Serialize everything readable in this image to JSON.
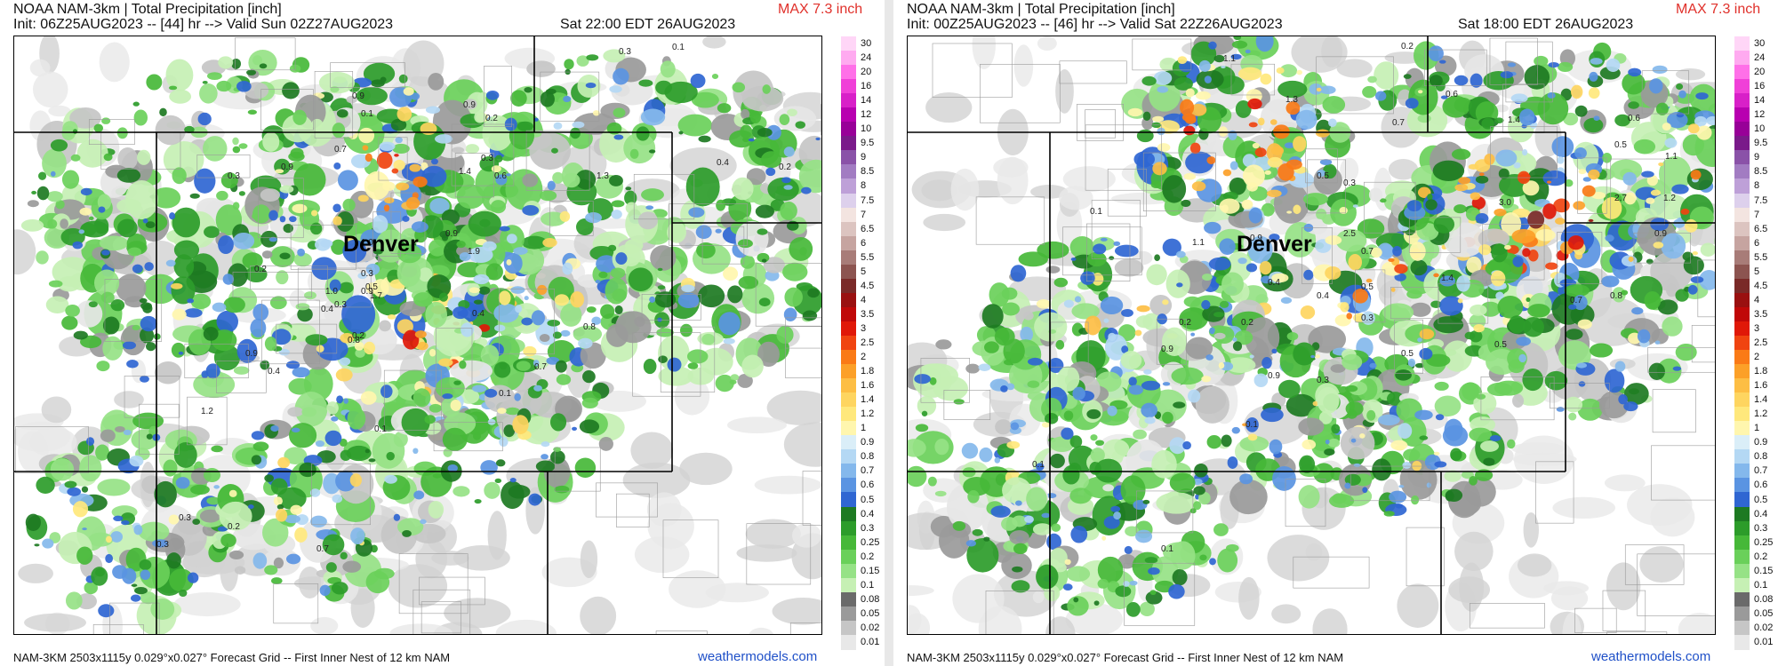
{
  "panels": [
    {
      "title": "NOAA NAM-3km | Total Precipitation [inch]",
      "max": "MAX 7.3 inch",
      "init": "Init: 06Z25AUG2023 -- [44] hr --> Valid Sun 02Z27AUG2023",
      "valid_local": "Sat 22:00 EDT 26AUG2023",
      "city": "Denver",
      "footer": "NAM-3KM 2503x1115y 0.029°x0.027° Forecast Grid -- First Inner Nest of 12 km NAM",
      "site": "weathermodels.com",
      "value_labels": [
        "0.9",
        "0.9",
        "0.3",
        "0.1",
        "0.7",
        "0.2",
        "0.3",
        "0.1",
        "1.4",
        "0.6",
        "0.4",
        "0.2",
        "0.9",
        "0.3",
        "1.3",
        "0.9",
        "1.9",
        "1.0",
        "0.5",
        "0.2",
        "1.0",
        "0.3",
        "0.3",
        "0.4",
        "0.9",
        "1.7",
        "0.4",
        "0.8",
        "0.8",
        "0.9",
        "0.2",
        "0.7",
        "0.4",
        "0.1",
        "1.2",
        "0.1",
        "0.3",
        "0.2",
        "0.3",
        "0.7"
      ]
    },
    {
      "title": "NOAA NAM-3km | Total Precipitation [inch]",
      "max": "MAX 7.3 inch",
      "init": "Init: 00Z25AUG2023 -- [46] hr --> Valid Sat 22Z26AUG2023",
      "valid_local": "Sat 18:00 EDT 26AUG2023",
      "city": "Denver",
      "footer": "NAM-3KM 2503x1115y 0.029°x0.027° Forecast Grid -- First Inner Nest of 12 km NAM",
      "site": "weathermodels.com",
      "value_labels": [
        "1.1",
        "0.2",
        "0.6",
        "1.3",
        "0.7",
        "1.4",
        "0.6",
        "0.5",
        "1.1",
        "0.5",
        "0.3",
        "0.1",
        "0.9",
        "1.1",
        "2.5",
        "2.7",
        "3.0",
        "0.9",
        "1.2",
        "0.7",
        "0.4",
        "0.5",
        "1.4",
        "0.7",
        "0.8",
        "0.2",
        "0.4",
        "0.2",
        "0.3",
        "0.9",
        "0.5",
        "0.9",
        "0.3",
        "0.5",
        "0.1",
        "0.1",
        "0.1"
      ]
    }
  ],
  "legend": {
    "labels": [
      "30",
      "24",
      "20",
      "16",
      "14",
      "12",
      "10",
      "9.5",
      "9",
      "8.5",
      "8",
      "7.5",
      "7",
      "6.5",
      "6",
      "5.5",
      "5",
      "4.5",
      "4",
      "3.5",
      "3",
      "2.5",
      "2",
      "1.8",
      "1.6",
      "1.4",
      "1.2",
      "1",
      "0.9",
      "0.8",
      "0.7",
      "0.6",
      "0.5",
      "0.4",
      "0.3",
      "0.25",
      "0.2",
      "0.15",
      "0.1",
      "0.08",
      "0.05",
      "0.02",
      "0.01"
    ],
    "colors": [
      "#ffd6f7",
      "#ffaaf0",
      "#ff70e8",
      "#f040d8",
      "#d820c8",
      "#b800b0",
      "#980098",
      "#7a1a8a",
      "#8a52a8",
      "#a27cc2",
      "#bea0d8",
      "#ddd0ec",
      "#f3e4e0",
      "#dcc4c0",
      "#c6a4a0",
      "#a87c78",
      "#8c5450",
      "#7a2a28",
      "#9a1010",
      "#c00808",
      "#e01808",
      "#f04410",
      "#fa7a16",
      "#fca028",
      "#fdbe44",
      "#fed560",
      "#ffe87c",
      "#fff6ae",
      "#daeef8",
      "#b4d8f4",
      "#84b8ec",
      "#5a94e2",
      "#2f66d2",
      "#1d7a22",
      "#2c9c2a",
      "#46b838",
      "#6ad05a",
      "#96e286",
      "#c6f0b4",
      "#6a6a6a",
      "#9a9a9a",
      "#c6c6c6",
      "#e8e8e8"
    ]
  }
}
